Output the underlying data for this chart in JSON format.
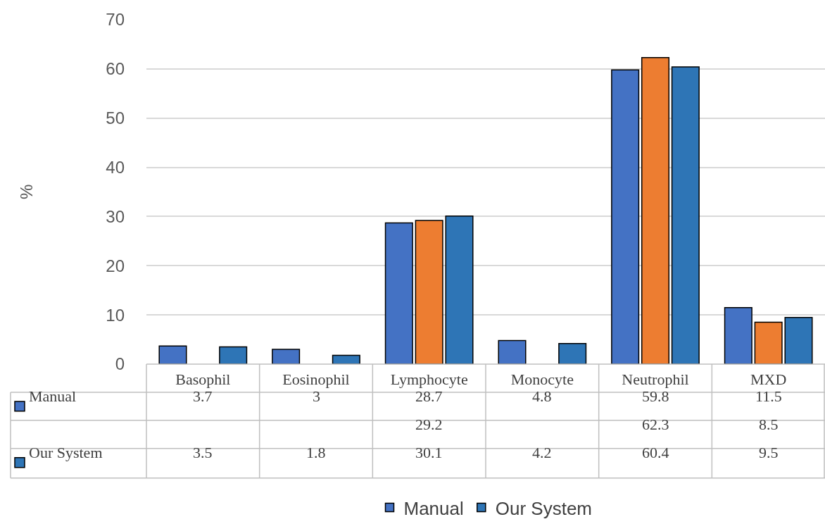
{
  "chart_data": {
    "type": "bar",
    "ylabel": "%",
    "categories": [
      "Basophil",
      "Eosinophil",
      "Lymphocyte",
      "Monocyte",
      "Neutrophil",
      "MXD"
    ],
    "series": [
      {
        "name": "Manual",
        "color": "#4472c4",
        "values": [
          3.7,
          3,
          28.7,
          4.8,
          59.8,
          11.5
        ]
      },
      {
        "color": "#ed7d31",
        "values": [
          null,
          null,
          29.2,
          null,
          62.3,
          8.5
        ]
      },
      {
        "name": "Our System",
        "color": "#2e75b6",
        "values": [
          3.5,
          1.8,
          30.1,
          4.2,
          60.4,
          9.5
        ]
      }
    ],
    "ylim": [
      0,
      70
    ],
    "yticks": [
      0,
      10,
      20,
      30,
      40,
      50,
      60,
      70
    ],
    "grid": "y",
    "legend": "bottom",
    "data_labels": true
  }
}
